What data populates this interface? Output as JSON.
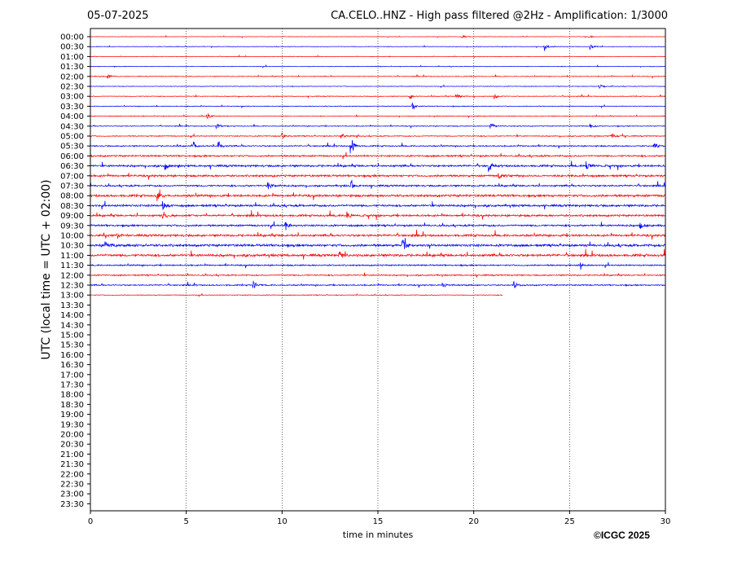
{
  "header": {
    "date": "05-07-2025",
    "title": "CA.CELO..HNZ - High pass filtered @2Hz - Amplification: 1/3000"
  },
  "footer": {
    "copyright": "©ICGC 2025"
  },
  "chart_data": {
    "type": "line",
    "title": "CA.CELO..HNZ - High pass filtered @2Hz - Amplification: 1/3000",
    "xlabel": "time in minutes",
    "ylabel": "UTC (local time = UTC + 02:00)",
    "xlim": [
      0,
      30
    ],
    "x_ticks": [
      0,
      5,
      10,
      15,
      20,
      25,
      30
    ],
    "vertical_grid_at": [
      5,
      10,
      15,
      20,
      25
    ],
    "grid_style": "dotted vertical",
    "row_labels": [
      "00:00",
      "00:30",
      "01:00",
      "01:30",
      "02:00",
      "02:30",
      "03:00",
      "03:30",
      "04:00",
      "04:30",
      "05:00",
      "05:30",
      "06:00",
      "06:30",
      "07:00",
      "07:30",
      "08:00",
      "08:30",
      "09:00",
      "09:30",
      "10:00",
      "10:30",
      "11:00",
      "11:30",
      "12:00",
      "12:30",
      "13:00",
      "13:30",
      "14:00",
      "14:30",
      "15:00",
      "15:30",
      "16:00",
      "16:30",
      "17:00",
      "17:30",
      "18:00",
      "18:30",
      "19:00",
      "19:30",
      "20:00",
      "20:30",
      "21:00",
      "21:30",
      "22:00",
      "22:30",
      "23:00",
      "23:30"
    ],
    "colors": {
      "even_rows": "#ff0000",
      "odd_rows": "#0000ff"
    },
    "rows_recorded": 27,
    "last_row_end_minute": 21.5,
    "noise_level": [
      0.3,
      0.35,
      0.3,
      0.4,
      0.5,
      0.4,
      0.5,
      0.5,
      0.5,
      0.6,
      0.7,
      0.9,
      1.2,
      1.4,
      1.4,
      1.2,
      1.6,
      1.5,
      1.4,
      1.3,
      1.5,
      1.7,
      1.7,
      1.0,
      0.9,
      0.9,
      0.5
    ],
    "events": [
      {
        "row": 0,
        "minute": 19.4,
        "amp": 3
      },
      {
        "row": 0,
        "minute": 26.0,
        "amp": 3
      },
      {
        "row": 1,
        "minute": 23.7,
        "amp": 6
      },
      {
        "row": 1,
        "minute": 26.1,
        "amp": 5
      },
      {
        "row": 4,
        "minute": 0.9,
        "amp": 3
      },
      {
        "row": 5,
        "minute": 26.6,
        "amp": 3
      },
      {
        "row": 6,
        "minute": 16.7,
        "amp": 4
      },
      {
        "row": 6,
        "minute": 19.1,
        "amp": 5
      },
      {
        "row": 6,
        "minute": 21.1,
        "amp": 5
      },
      {
        "row": 7,
        "minute": 16.8,
        "amp": 5
      },
      {
        "row": 8,
        "minute": 6.1,
        "amp": 4
      },
      {
        "row": 9,
        "minute": 6.6,
        "amp": 5
      },
      {
        "row": 9,
        "minute": 20.9,
        "amp": 6
      },
      {
        "row": 9,
        "minute": 26.1,
        "amp": 4
      },
      {
        "row": 10,
        "minute": 10.0,
        "amp": 5
      },
      {
        "row": 10,
        "minute": 13.1,
        "amp": 4
      },
      {
        "row": 10,
        "minute": 27.2,
        "amp": 4
      },
      {
        "row": 11,
        "minute": 5.4,
        "amp": 5
      },
      {
        "row": 11,
        "minute": 6.7,
        "amp": 6
      },
      {
        "row": 11,
        "minute": 13.6,
        "amp": 12
      },
      {
        "row": 11,
        "minute": 29.4,
        "amp": 5
      },
      {
        "row": 13,
        "minute": 3.9,
        "amp": 6
      },
      {
        "row": 13,
        "minute": 20.8,
        "amp": 7
      },
      {
        "row": 13,
        "minute": 25.9,
        "amp": 6
      },
      {
        "row": 14,
        "minute": 21.3,
        "amp": 5
      },
      {
        "row": 15,
        "minute": 9.3,
        "amp": 5
      },
      {
        "row": 15,
        "minute": 13.6,
        "amp": 6
      },
      {
        "row": 16,
        "minute": 3.5,
        "amp": 6
      },
      {
        "row": 17,
        "minute": 3.8,
        "amp": 6
      },
      {
        "row": 18,
        "minute": 3.8,
        "amp": 7
      },
      {
        "row": 18,
        "minute": 13.4,
        "amp": 6
      },
      {
        "row": 19,
        "minute": 10.2,
        "amp": 5
      },
      {
        "row": 19,
        "minute": 28.7,
        "amp": 5
      },
      {
        "row": 20,
        "minute": 1.4,
        "amp": 5
      },
      {
        "row": 21,
        "minute": 0.8,
        "amp": 7
      },
      {
        "row": 21,
        "minute": 16.3,
        "amp": 11
      },
      {
        "row": 22,
        "minute": 13.0,
        "amp": 6
      },
      {
        "row": 23,
        "minute": 25.6,
        "amp": 5
      },
      {
        "row": 25,
        "minute": 8.5,
        "amp": 6
      },
      {
        "row": 25,
        "minute": 18.4,
        "amp": 5
      },
      {
        "row": 25,
        "minute": 22.1,
        "amp": 5
      }
    ]
  }
}
